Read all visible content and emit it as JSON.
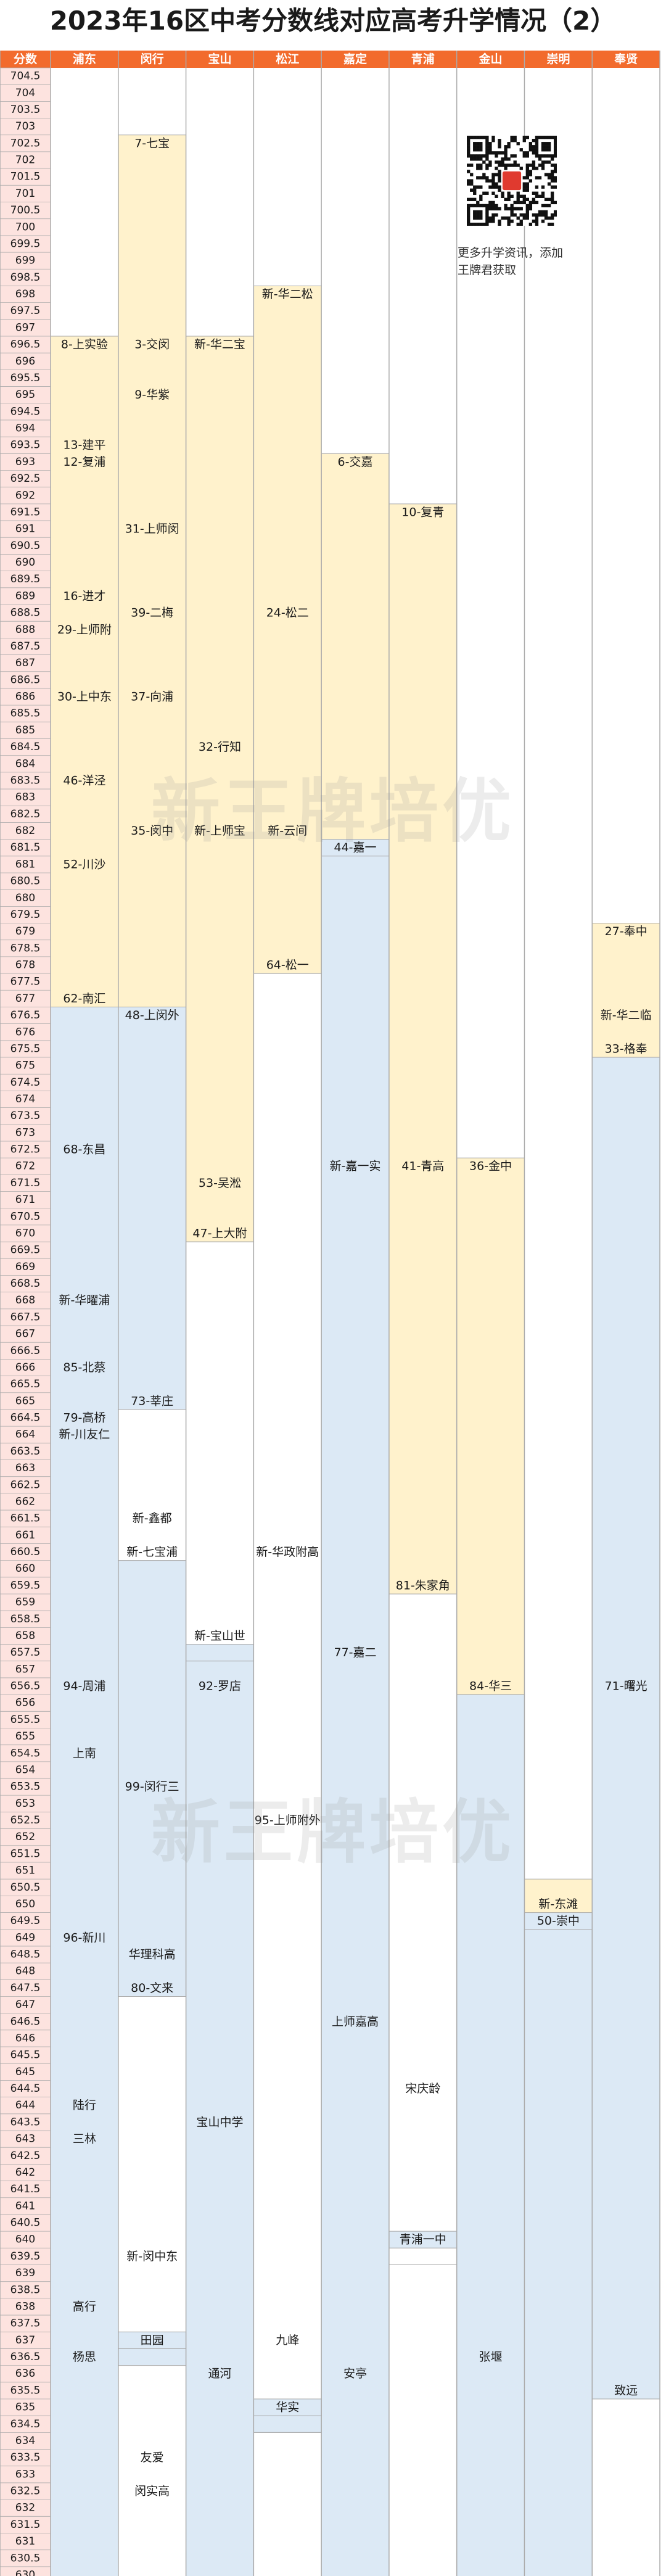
{
  "title": "2023年16区中考分数线对应高考升学情况（2）",
  "qr_caption_line1": "更多升学资讯，添加",
  "qr_caption_line2": "王牌君获取",
  "watermark": "新王牌培优",
  "colors": {
    "header_bg": "#f26b2d",
    "header_text": "#ffffff",
    "score_col_bg": "#fde3df",
    "yellow": "#fff2cc",
    "blue": "#dce9f5",
    "white": "#ffffff",
    "grid": "#ababab"
  },
  "chart_data": {
    "type": "table",
    "title": "2023年16区中考分数线对应高考升学情况（2）",
    "score_header": "分数",
    "score_max": 704.5,
    "score_min": 630,
    "score_step": 0.5,
    "columns": [
      {
        "name": "浦东",
        "bands": [
          {
            "from": 696.5,
            "to": 677,
            "color": "yellow"
          },
          {
            "from": 676.5,
            "to": 630,
            "color": "blue"
          }
        ],
        "labels": [
          {
            "score": 696.5,
            "text": "8-上实验"
          },
          {
            "score": 693.5,
            "text": "13-建平"
          },
          {
            "score": 693,
            "text": "12-复浦"
          },
          {
            "score": 689,
            "text": "16-进才"
          },
          {
            "score": 688,
            "text": "29-上师附"
          },
          {
            "score": 686,
            "text": "30-上中东"
          },
          {
            "score": 683.5,
            "text": "46-洋泾"
          },
          {
            "score": 681,
            "text": "52-川沙"
          },
          {
            "score": 677,
            "text": "62-南汇"
          },
          {
            "score": 672.5,
            "text": "68-东昌"
          },
          {
            "score": 668,
            "text": "新-华曜浦"
          },
          {
            "score": 666,
            "text": "85-北蔡"
          },
          {
            "score": 664.5,
            "text": "79-高桥"
          },
          {
            "score": 664,
            "text": "新-川友仁"
          },
          {
            "score": 656.5,
            "text": "94-周浦"
          },
          {
            "score": 654.5,
            "text": "上南"
          },
          {
            "score": 649,
            "text": "96-新川"
          },
          {
            "score": 644,
            "text": "陆行"
          },
          {
            "score": 643,
            "text": "三林"
          },
          {
            "score": 638,
            "text": "高行"
          },
          {
            "score": 636.5,
            "text": "杨思"
          }
        ]
      },
      {
        "name": "闵行",
        "bands": [
          {
            "from": 702.5,
            "to": 677,
            "color": "yellow"
          },
          {
            "from": 676.5,
            "to": 665,
            "color": "blue"
          },
          {
            "from": 664.5,
            "to": 660.5,
            "color": "white"
          },
          {
            "from": 660,
            "to": 647.5,
            "color": "blue"
          },
          {
            "from": 647,
            "to": 637,
            "color": "white"
          },
          {
            "from": 637,
            "to": 636.5,
            "color": "blue"
          },
          {
            "from": 636,
            "to": 630,
            "color": "white"
          }
        ],
        "labels": [
          {
            "score": 702.5,
            "text": "7-七宝"
          },
          {
            "score": 696.5,
            "text": "3-交闵"
          },
          {
            "score": 695,
            "text": "9-华紫"
          },
          {
            "score": 691,
            "text": "31-上师闵"
          },
          {
            "score": 688.5,
            "text": "39-二梅"
          },
          {
            "score": 686,
            "text": "37-向浦"
          },
          {
            "score": 682,
            "text": "35-闵中"
          },
          {
            "score": 676.5,
            "text": "48-上闵外"
          },
          {
            "score": 665,
            "text": "73-莘庄"
          },
          {
            "score": 661.5,
            "text": "新-鑫都"
          },
          {
            "score": 660.5,
            "text": "新-七宝浦"
          },
          {
            "score": 653.5,
            "text": "99-闵行三"
          },
          {
            "score": 648.5,
            "text": "华理科高"
          },
          {
            "score": 647.5,
            "text": "80-文来"
          },
          {
            "score": 639.5,
            "text": "新-闵中东"
          },
          {
            "score": 637,
            "text": "田园"
          },
          {
            "score": 633.5,
            "text": "友爱"
          },
          {
            "score": 632.5,
            "text": "闵实高"
          }
        ]
      },
      {
        "name": "宝山",
        "bands": [
          {
            "from": 696.5,
            "to": 670,
            "color": "yellow"
          },
          {
            "from": 669.5,
            "to": 657.5,
            "color": "white"
          },
          {
            "from": 657.5,
            "to": 630,
            "color": "blue"
          }
        ],
        "labels": [
          {
            "score": 696.5,
            "text": "新-华二宝"
          },
          {
            "score": 684.5,
            "text": "32-行知"
          },
          {
            "score": 682,
            "text": "新-上师宝"
          },
          {
            "score": 671.5,
            "text": "53-吴淞"
          },
          {
            "score": 670,
            "text": "47-上大附"
          },
          {
            "score": 658,
            "text": "新-宝山世"
          },
          {
            "score": 656.5,
            "text": "92-罗店"
          },
          {
            "score": 643.5,
            "text": "宝山中学"
          },
          {
            "score": 636,
            "text": "通河"
          }
        ]
      },
      {
        "name": "松江",
        "bands": [
          {
            "from": 698,
            "to": 678,
            "color": "yellow"
          },
          {
            "from": 677.5,
            "to": 635,
            "color": "white"
          },
          {
            "from": 635,
            "to": 634.5,
            "color": "blue"
          },
          {
            "from": 634,
            "to": 630,
            "color": "white"
          }
        ],
        "labels": [
          {
            "score": 698,
            "text": "新-华二松"
          },
          {
            "score": 688.5,
            "text": "24-松二"
          },
          {
            "score": 682,
            "text": "新-云间"
          },
          {
            "score": 678,
            "text": "64-松一"
          },
          {
            "score": 660.5,
            "text": "新-华政附高"
          },
          {
            "score": 652.5,
            "text": "95-上师附外"
          },
          {
            "score": 637,
            "text": "九峰"
          },
          {
            "score": 635,
            "text": "华实"
          }
        ]
      },
      {
        "name": "嘉定",
        "bands": [
          {
            "from": 693,
            "to": 681.5,
            "color": "yellow"
          },
          {
            "from": 681.5,
            "to": 630,
            "color": "blue"
          }
        ],
        "labels": [
          {
            "score": 693,
            "text": "6-交嘉"
          },
          {
            "score": 681.5,
            "text": "44-嘉一"
          },
          {
            "score": 672,
            "text": "新-嘉一实"
          },
          {
            "score": 657.5,
            "text": "77-嘉二"
          },
          {
            "score": 646.5,
            "text": "上师嘉高"
          },
          {
            "score": 636,
            "text": "安亭"
          }
        ]
      },
      {
        "name": "青浦",
        "bands": [
          {
            "from": 691.5,
            "to": 659.5,
            "color": "yellow"
          },
          {
            "from": 659,
            "to": 640,
            "color": "white"
          },
          {
            "from": 640,
            "to": 639.5,
            "color": "blue"
          },
          {
            "from": 639.5,
            "to": 630,
            "color": "white"
          }
        ],
        "labels": [
          {
            "score": 691.5,
            "text": "10-复青"
          },
          {
            "score": 672,
            "text": "41-青高"
          },
          {
            "score": 659.5,
            "text": "81-朱家角"
          },
          {
            "score": 644.5,
            "text": "宋庆龄"
          },
          {
            "score": 640,
            "text": "青浦一中"
          }
        ]
      },
      {
        "name": "金山",
        "bands": [
          {
            "from": 672,
            "to": 656.5,
            "color": "yellow"
          },
          {
            "from": 656,
            "to": 630,
            "color": "blue"
          }
        ],
        "labels": [
          {
            "score": 672,
            "text": "36-金中"
          },
          {
            "score": 656.5,
            "text": "84-华三"
          },
          {
            "score": 636.5,
            "text": "张堰"
          }
        ]
      },
      {
        "name": "崇明",
        "bands": [
          {
            "from": 650.5,
            "to": 649.5,
            "color": "yellow"
          },
          {
            "from": 649.5,
            "to": 630,
            "color": "blue"
          }
        ],
        "labels": [
          {
            "score": 650,
            "text": "新-东滩"
          },
          {
            "score": 649.5,
            "text": "50-崇中"
          }
        ]
      },
      {
        "name": "奉贤",
        "bands": [
          {
            "from": 679,
            "to": 675.5,
            "color": "yellow"
          },
          {
            "from": 675,
            "to": 635.5,
            "color": "blue"
          },
          {
            "from": 635,
            "to": 630,
            "color": "white"
          }
        ],
        "labels": [
          {
            "score": 679,
            "text": "27-奉中"
          },
          {
            "score": 676.5,
            "text": "新-华二临"
          },
          {
            "score": 675.5,
            "text": "33-格奉"
          },
          {
            "score": 656.5,
            "text": "71-曙光"
          },
          {
            "score": 635.5,
            "text": "致远"
          }
        ]
      }
    ]
  }
}
